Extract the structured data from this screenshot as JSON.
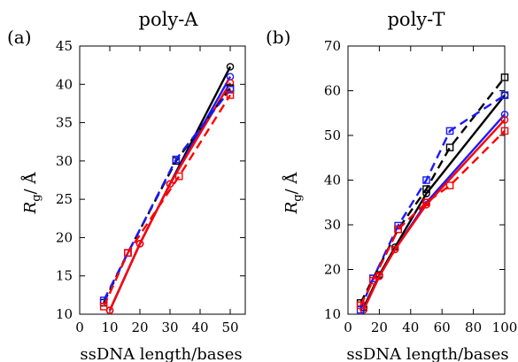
{
  "chart_data": [
    {
      "type": "line",
      "panel_label": "(a)",
      "title": "poly-A",
      "xlabel": "ssDNA length/bases",
      "ylabel_symbol": "R",
      "ylabel_sub": "g",
      "ylabel_unit": "/ Å",
      "xlim": [
        0,
        55
      ],
      "ylim": [
        10,
        45
      ],
      "xticks": [
        0,
        10,
        20,
        30,
        40,
        50
      ],
      "yticks": [
        10,
        15,
        20,
        25,
        30,
        35,
        40,
        45
      ],
      "grid": false,
      "series": [
        {
          "color": "#000000",
          "marker": "circle",
          "linestyle": "solid",
          "x": [
            10,
            20,
            30,
            50
          ],
          "y": [
            10.5,
            19.2,
            27.0,
            42.3
          ]
        },
        {
          "color": "#1a1aff",
          "marker": "circle",
          "linestyle": "solid",
          "x": [
            10,
            20,
            30,
            50
          ],
          "y": [
            10.5,
            19.2,
            27.0,
            41.0
          ]
        },
        {
          "color": "#ff0000",
          "marker": "circle",
          "linestyle": "solid",
          "x": [
            10,
            20,
            30,
            50
          ],
          "y": [
            10.5,
            19.2,
            27.0,
            40.2
          ]
        },
        {
          "color": "#000000",
          "marker": "square",
          "linestyle": "dashed",
          "x": [
            8,
            16,
            32,
            50
          ],
          "y": [
            11.5,
            18.0,
            30.0,
            39.5
          ]
        },
        {
          "color": "#1a1aff",
          "marker": "square",
          "linestyle": "dashed",
          "x": [
            8,
            16,
            32,
            50
          ],
          "y": [
            11.8,
            18.0,
            30.2,
            39.3
          ]
        },
        {
          "color": "#ff0000",
          "marker": "square",
          "linestyle": "dashed",
          "x": [
            8,
            16,
            33,
            50
          ],
          "y": [
            11.0,
            18.0,
            28.0,
            38.6
          ]
        }
      ]
    },
    {
      "type": "line",
      "panel_label": "(b)",
      "title": "poly-T",
      "xlabel": "ssDNA length/bases",
      "ylabel_symbol": "R",
      "ylabel_sub": "g",
      "ylabel_unit": "/ Å",
      "xlim": [
        0,
        100
      ],
      "ylim": [
        10,
        70
      ],
      "xticks": [
        0,
        20,
        40,
        60,
        80,
        100
      ],
      "yticks": [
        10,
        20,
        30,
        40,
        50,
        60,
        70
      ],
      "grid": false,
      "series": [
        {
          "color": "#000000",
          "marker": "circle",
          "linestyle": "solid",
          "x": [
            10,
            20,
            30,
            50,
            100
          ],
          "y": [
            11.5,
            18.8,
            25.0,
            37.0,
            59.0
          ]
        },
        {
          "color": "#1a1aff",
          "marker": "circle",
          "linestyle": "solid",
          "x": [
            10,
            20,
            30,
            50,
            100
          ],
          "y": [
            11.0,
            18.5,
            24.5,
            35.0,
            54.7
          ]
        },
        {
          "color": "#ff0000",
          "marker": "circle",
          "linestyle": "solid",
          "x": [
            10,
            20,
            30,
            50,
            100
          ],
          "y": [
            11.0,
            18.5,
            24.5,
            34.5,
            53.5
          ]
        },
        {
          "color": "#000000",
          "marker": "square",
          "linestyle": "dashed",
          "x": [
            8,
            16,
            32,
            50,
            65,
            100
          ],
          "y": [
            12.5,
            18.0,
            29.0,
            38.0,
            47.3,
            63.0
          ]
        },
        {
          "color": "#1a1aff",
          "marker": "square",
          "linestyle": "dashed",
          "x": [
            8,
            16,
            32,
            50,
            65,
            100
          ],
          "y": [
            11.0,
            18.0,
            29.8,
            40.0,
            51.0,
            59.0
          ]
        },
        {
          "color": "#ff0000",
          "marker": "square",
          "linestyle": "dashed",
          "x": [
            8,
            16,
            32,
            50,
            65,
            100
          ],
          "y": [
            12.0,
            17.5,
            29.0,
            35.0,
            38.8,
            51.0
          ]
        }
      ]
    }
  ]
}
